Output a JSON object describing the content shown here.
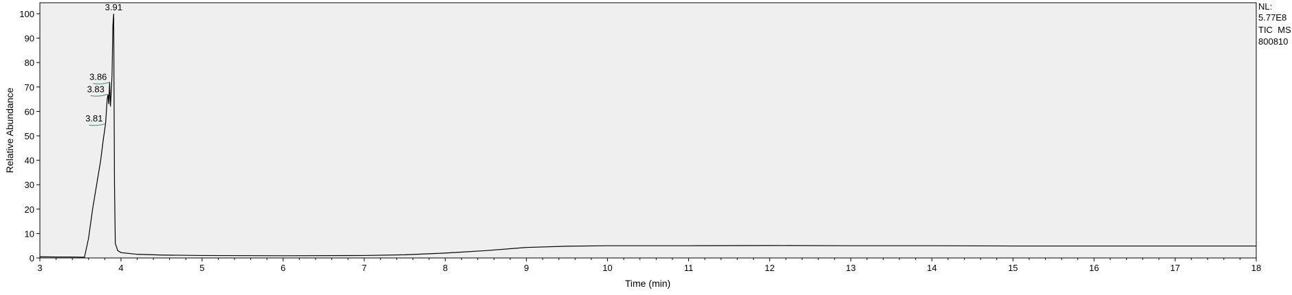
{
  "chart_data": {
    "type": "line",
    "xlabel": "Time (min)",
    "ylabel": "Relative Abundance",
    "xlim": [
      3,
      18
    ],
    "ylim": [
      0,
      100
    ],
    "x_ticks": [
      "3",
      "4",
      "5",
      "6",
      "7",
      "8",
      "9",
      "10",
      "11",
      "12",
      "13",
      "14",
      "15",
      "16",
      "17",
      "18"
    ],
    "y_ticks": [
      "0",
      "10",
      "20",
      "30",
      "40",
      "50",
      "60",
      "70",
      "80",
      "90",
      "100"
    ],
    "info": [
      "NL:",
      "5.77E8",
      "TIC  MS",
      "800810"
    ],
    "peak_labels": [
      {
        "text": "3.91",
        "x": 3.91,
        "y": 100
      },
      {
        "text": "3.86",
        "x": 3.86,
        "y": 72
      },
      {
        "text": "3.83",
        "x": 3.83,
        "y": 67
      },
      {
        "text": "3.81",
        "x": 3.81,
        "y": 55
      }
    ],
    "series": [
      {
        "color": "#000000",
        "points": [
          [
            3.0,
            0.5
          ],
          [
            3.2,
            0.4
          ],
          [
            3.4,
            0.4
          ],
          [
            3.55,
            0.3
          ],
          [
            3.6,
            8
          ],
          [
            3.65,
            20
          ],
          [
            3.7,
            30
          ],
          [
            3.75,
            40
          ],
          [
            3.78,
            48
          ],
          [
            3.81,
            55
          ],
          [
            3.83,
            65
          ],
          [
            3.84,
            67
          ],
          [
            3.85,
            63
          ],
          [
            3.86,
            72
          ],
          [
            3.87,
            62
          ],
          [
            3.88,
            68
          ],
          [
            3.89,
            75
          ],
          [
            3.9,
            95
          ],
          [
            3.91,
            100
          ],
          [
            3.92,
            30
          ],
          [
            3.93,
            6
          ],
          [
            3.96,
            3
          ],
          [
            4.0,
            2.2
          ],
          [
            4.2,
            1.5
          ],
          [
            4.5,
            1.2
          ],
          [
            5.0,
            1.0
          ],
          [
            6.0,
            0.9
          ],
          [
            7.0,
            1.0
          ],
          [
            7.5,
            1.3
          ],
          [
            8.0,
            2.0
          ],
          [
            8.5,
            3.0
          ],
          [
            9.0,
            4.3
          ],
          [
            9.5,
            4.8
          ],
          [
            10.0,
            5.0
          ],
          [
            11.0,
            5.0
          ],
          [
            12.0,
            5.1
          ],
          [
            13.0,
            5.0
          ],
          [
            14.0,
            5.0
          ],
          [
            15.0,
            4.9
          ],
          [
            16.0,
            4.9
          ],
          [
            17.0,
            4.9
          ],
          [
            18.0,
            4.9
          ]
        ]
      }
    ],
    "colors": {
      "plot_background": "#efefef",
      "trace": "#000000",
      "peak_marker": "#2e8b57"
    },
    "grid": false
  }
}
